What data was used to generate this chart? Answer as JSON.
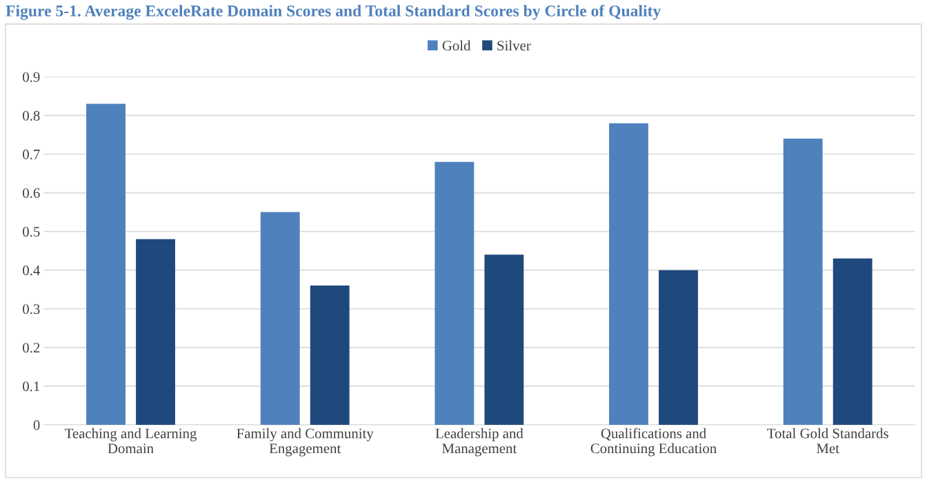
{
  "chart_data": {
    "type": "bar",
    "title": "Figure 5-1. Average ExceleRate Domain Scores and Total Standard Scores by Circle of Quality",
    "categories": [
      "Teaching and Learning\nDomain",
      "Family and Community\nEngagement",
      "Leadership and\nManagement",
      "Qualifications and\nContinuing Education",
      "Total Gold Standards\nMet"
    ],
    "series": [
      {
        "name": "Gold",
        "color": "#4f81bd",
        "values": [
          0.83,
          0.55,
          0.68,
          0.78,
          0.74
        ]
      },
      {
        "name": "Silver",
        "color": "#1f497d",
        "values": [
          0.48,
          0.36,
          0.44,
          0.4,
          0.43
        ]
      }
    ],
    "ylim": [
      0,
      0.9
    ],
    "yticks": [
      0,
      0.1,
      0.2,
      0.3,
      0.4,
      0.5,
      0.6,
      0.7,
      0.8,
      0.9
    ],
    "grid": "y",
    "legend": "top"
  }
}
